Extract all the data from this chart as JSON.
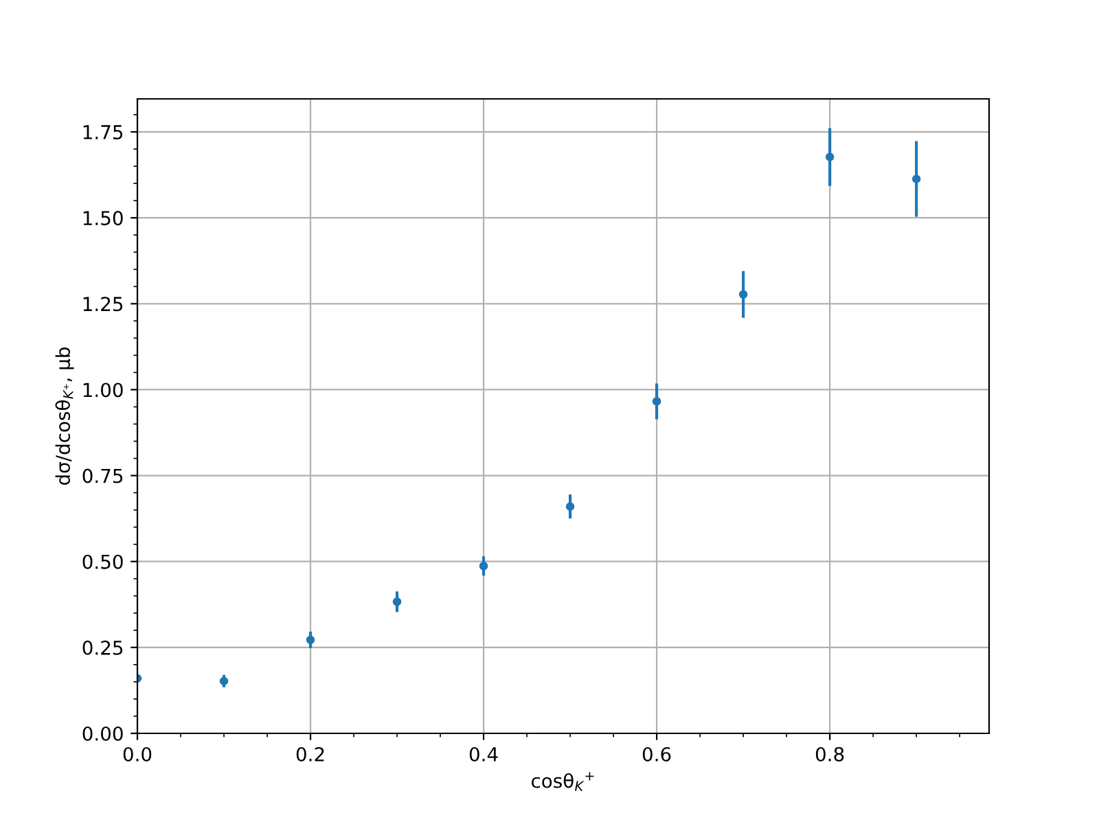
{
  "chart_data": {
    "type": "scatter",
    "xlabel": "cosθ$_{K}$$^{+}$",
    "ylabel": "dσ/dcosθ$_{K⁺}$, μb",
    "x": [
      0.0,
      0.1,
      0.2,
      0.3,
      0.4,
      0.5,
      0.6,
      0.7,
      0.8,
      0.9
    ],
    "values": [
      0.16,
      0.152,
      0.272,
      0.383,
      0.487,
      0.66,
      0.966,
      1.277,
      1.677,
      1.613
    ],
    "errors": [
      0.01,
      0.018,
      0.024,
      0.03,
      0.028,
      0.035,
      0.052,
      0.068,
      0.084,
      0.11
    ],
    "color": "#1f77b4",
    "marker": "circle",
    "xlim": [
      0,
      0.984
    ],
    "ylim": [
      0,
      1.846
    ],
    "xticks": [
      {
        "value": 0,
        "label": "0.0"
      },
      {
        "value": 0.2,
        "label": "0.2"
      },
      {
        "value": 0.4,
        "label": "0.4"
      },
      {
        "value": 0.6,
        "label": "0.6"
      },
      {
        "value": 0.8,
        "label": "0.8"
      }
    ],
    "yticks": [
      {
        "value": 0,
        "label": "0.00"
      },
      {
        "value": 0.25,
        "label": "0.25"
      },
      {
        "value": 0.5,
        "label": "0.50"
      },
      {
        "value": 0.75,
        "label": "0.75"
      },
      {
        "value": 1.0,
        "label": "1.00"
      },
      {
        "value": 1.25,
        "label": "1.25"
      },
      {
        "value": 1.5,
        "label": "1.50"
      },
      {
        "value": 1.75,
        "label": "1.75"
      }
    ],
    "grid": true
  }
}
